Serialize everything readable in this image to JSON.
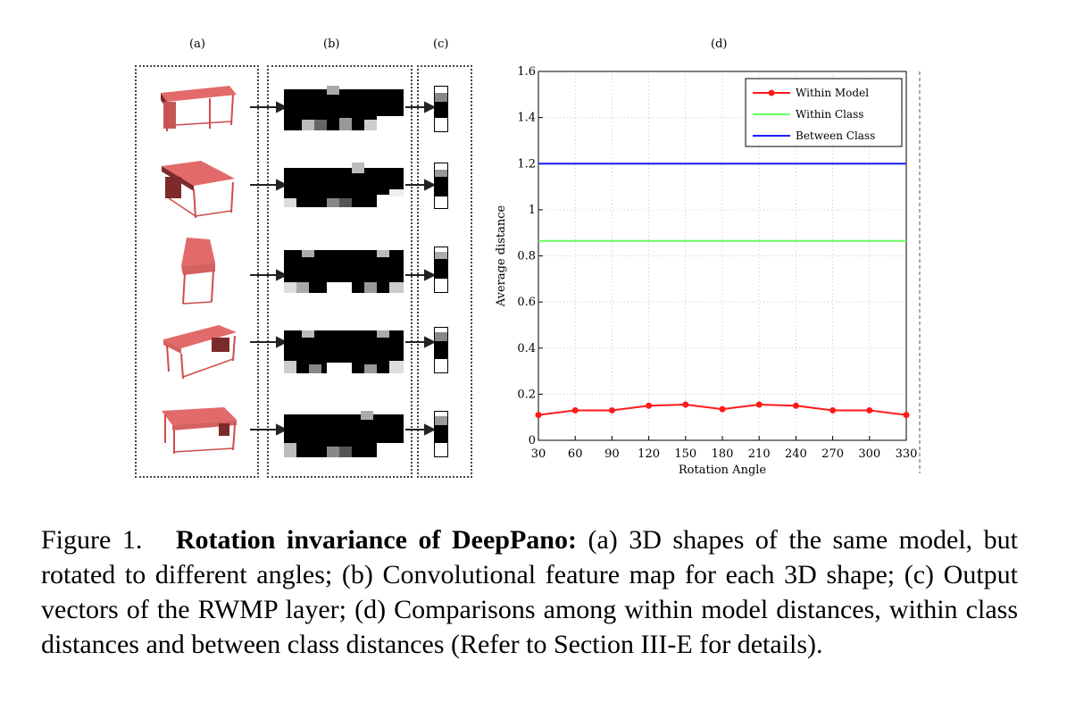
{
  "panels": {
    "a": "(a)",
    "b": "(b)",
    "c": "(c)",
    "d": "(d)"
  },
  "colors": {
    "table_top": "#e36a6a",
    "table_side": "#7d2a2a",
    "within_model": "#ff1a1a",
    "within_class": "#66ff66",
    "between_class": "#1a1aff"
  },
  "chart_data": {
    "type": "line",
    "xlabel": "Rotation Angle",
    "ylabel": "Average distance",
    "x": [
      30,
      60,
      90,
      120,
      150,
      180,
      210,
      240,
      270,
      300,
      330
    ],
    "xlim": [
      30,
      330
    ],
    "ylim": [
      0,
      1.6
    ],
    "yticks": [
      0,
      0.2,
      0.4,
      0.6,
      0.8,
      1,
      1.2,
      1.4,
      1.6
    ],
    "yticklabels": [
      "0",
      "0.2",
      "0.4",
      "0.6",
      "0.8",
      "1",
      "1.2",
      "1.4",
      "1.6"
    ],
    "grid": true,
    "legend_position": "top-right",
    "series": [
      {
        "name": "Within Model",
        "color": "#ff1a1a",
        "marker": true,
        "values": [
          0.11,
          0.13,
          0.13,
          0.15,
          0.155,
          0.135,
          0.155,
          0.15,
          0.13,
          0.13,
          0.11
        ]
      },
      {
        "name": "Within Class",
        "color": "#66ff66",
        "marker": false,
        "values": [
          0.865,
          0.865,
          0.865,
          0.865,
          0.865,
          0.865,
          0.865,
          0.865,
          0.865,
          0.865,
          0.865
        ]
      },
      {
        "name": "Between Class",
        "color": "#1a1aff",
        "marker": false,
        "values": [
          1.2,
          1.2,
          1.2,
          1.2,
          1.2,
          1.2,
          1.2,
          1.2,
          1.2,
          1.2,
          1.2
        ]
      }
    ]
  },
  "caption": {
    "prefix": "Figure 1.",
    "bold": "Rotation invariance of DeepPano:",
    "text": " (a) 3D shapes of the same model, but rotated to different angles; (b) Convolutional feature map for each 3D shape; (c) Output vectors of the RWMP layer; (d) Comparisons among within model distances, within class distances and between class distances (Refer to Section III-E for details)."
  }
}
